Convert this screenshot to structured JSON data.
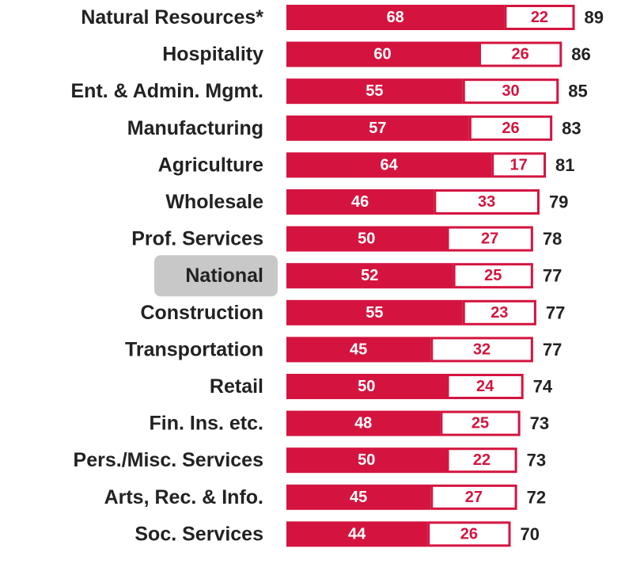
{
  "chart_data": {
    "type": "stacked-barh",
    "categories": [
      "Natural Resources*",
      "Hospitality",
      "Ent. & Admin. Mgmt.",
      "Manufacturing",
      "Agriculture",
      "Wholesale",
      "Prof. Services",
      "National",
      "Construction",
      "Transportation",
      "Retail",
      "Fin. Ins. etc.",
      "Pers./Misc. Services",
      "Arts, Rec. & Info.",
      "Soc. Services"
    ],
    "series": [
      {
        "color": "#d4143f",
        "values": [
          68,
          60,
          55,
          57,
          64,
          46,
          50,
          52,
          55,
          45,
          50,
          48,
          50,
          45,
          44
        ]
      },
      {
        "color": "#ffffff",
        "values": [
          22,
          26,
          30,
          26,
          17,
          33,
          27,
          25,
          23,
          32,
          24,
          25,
          22,
          27,
          26
        ]
      }
    ],
    "totals": [
      89,
      86,
      85,
      83,
      81,
      79,
      78,
      77,
      77,
      77,
      74,
      73,
      73,
      72,
      70
    ],
    "highlight": "National"
  }
}
